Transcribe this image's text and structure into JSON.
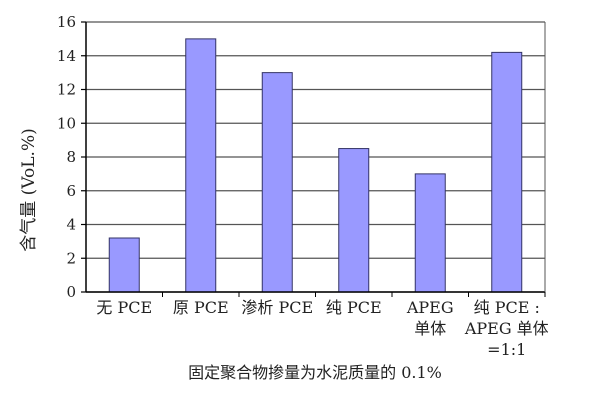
{
  "chart_data": {
    "type": "bar",
    "categories": [
      [
        "无 PCE"
      ],
      [
        "原 PCE"
      ],
      [
        "渗析 PCE"
      ],
      [
        "纯 PCE"
      ],
      [
        "APEG",
        "单体"
      ],
      [
        "纯 PCE :",
        "APEG 单体",
        "=1:1"
      ]
    ],
    "values": [
      3.2,
      15.0,
      13.0,
      8.5,
      7.0,
      14.2
    ],
    "ylim": [
      0,
      16
    ],
    "yticks": [
      "0",
      "2",
      "4",
      "6",
      "8",
      "10",
      "12",
      "14",
      "16"
    ],
    "ylabel": "含气量 (VoL.%)",
    "xlabel": "固定聚合物掺量为水泥质量的 0.1%",
    "grid": true,
    "colors": {
      "bar_fill": "#9999ff",
      "bar_stroke": "#333366",
      "grid": "#555555",
      "axis": "#000000"
    }
  }
}
